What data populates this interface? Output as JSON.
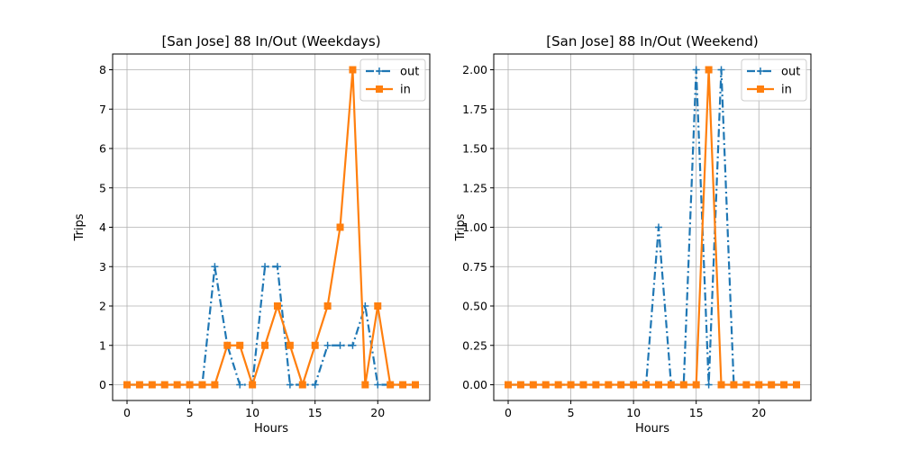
{
  "chart_data": [
    {
      "type": "line",
      "title": "[San Jose] 88 In/Out (Weekdays)",
      "xlabel": "Hours",
      "ylabel": "Trips",
      "x": [
        0,
        1,
        2,
        3,
        4,
        5,
        6,
        7,
        8,
        9,
        10,
        11,
        12,
        13,
        14,
        15,
        16,
        17,
        18,
        19,
        20,
        21,
        22,
        23
      ],
      "xlim": [
        -1.15,
        24.15
      ],
      "ylim": [
        -0.4,
        8.4
      ],
      "xticks": [
        0,
        5,
        10,
        15,
        20
      ],
      "xtick_labels": [
        "0",
        "5",
        "10",
        "15",
        "20"
      ],
      "yticks": [
        0,
        1,
        2,
        3,
        4,
        5,
        6,
        7,
        8
      ],
      "ytick_labels": [
        "0",
        "1",
        "2",
        "3",
        "4",
        "5",
        "6",
        "7",
        "8"
      ],
      "grid": true,
      "legend_position": "top-right",
      "series": [
        {
          "name": "out",
          "color": "#1f77b4",
          "style": "dashdot",
          "marker": "plus",
          "values": [
            0,
            0,
            0,
            0,
            0,
            0,
            0,
            3,
            1,
            0,
            0,
            3,
            3,
            0,
            0,
            0,
            1,
            1,
            1,
            2,
            0,
            0,
            0,
            0
          ]
        },
        {
          "name": "in",
          "color": "#ff7f0e",
          "style": "solid",
          "marker": "square",
          "values": [
            0,
            0,
            0,
            0,
            0,
            0,
            0,
            0,
            1,
            1,
            0,
            1,
            2,
            1,
            0,
            1,
            2,
            4,
            8,
            0,
            2,
            0,
            0,
            0
          ]
        }
      ]
    },
    {
      "type": "line",
      "title": "[San Jose] 88 In/Out (Weekend)",
      "xlabel": "Hours",
      "ylabel": "Trips",
      "x": [
        0,
        1,
        2,
        3,
        4,
        5,
        6,
        7,
        8,
        9,
        10,
        11,
        12,
        13,
        14,
        15,
        16,
        17,
        18,
        19,
        20,
        21,
        22,
        23
      ],
      "xlim": [
        -1.15,
        24.15
      ],
      "ylim": [
        -0.1,
        2.1
      ],
      "xticks": [
        0,
        5,
        10,
        15,
        20
      ],
      "xtick_labels": [
        "0",
        "5",
        "10",
        "15",
        "20"
      ],
      "yticks": [
        0,
        0.25,
        0.5,
        0.75,
        1.0,
        1.25,
        1.5,
        1.75,
        2.0
      ],
      "ytick_labels": [
        "0.00",
        "0.25",
        "0.50",
        "0.75",
        "1.00",
        "1.25",
        "1.50",
        "1.75",
        "2.00"
      ],
      "grid": true,
      "legend_position": "top-right",
      "series": [
        {
          "name": "out",
          "color": "#1f77b4",
          "style": "dashdot",
          "marker": "plus",
          "values": [
            0,
            0,
            0,
            0,
            0,
            0,
            0,
            0,
            0,
            0,
            0,
            0,
            1,
            0,
            0,
            2,
            0,
            2,
            0,
            0,
            0,
            0,
            0,
            0
          ]
        },
        {
          "name": "in",
          "color": "#ff7f0e",
          "style": "solid",
          "marker": "square",
          "values": [
            0,
            0,
            0,
            0,
            0,
            0,
            0,
            0,
            0,
            0,
            0,
            0,
            0,
            0,
            0,
            0,
            2,
            0,
            0,
            0,
            0,
            0,
            0,
            0
          ]
        }
      ]
    }
  ]
}
